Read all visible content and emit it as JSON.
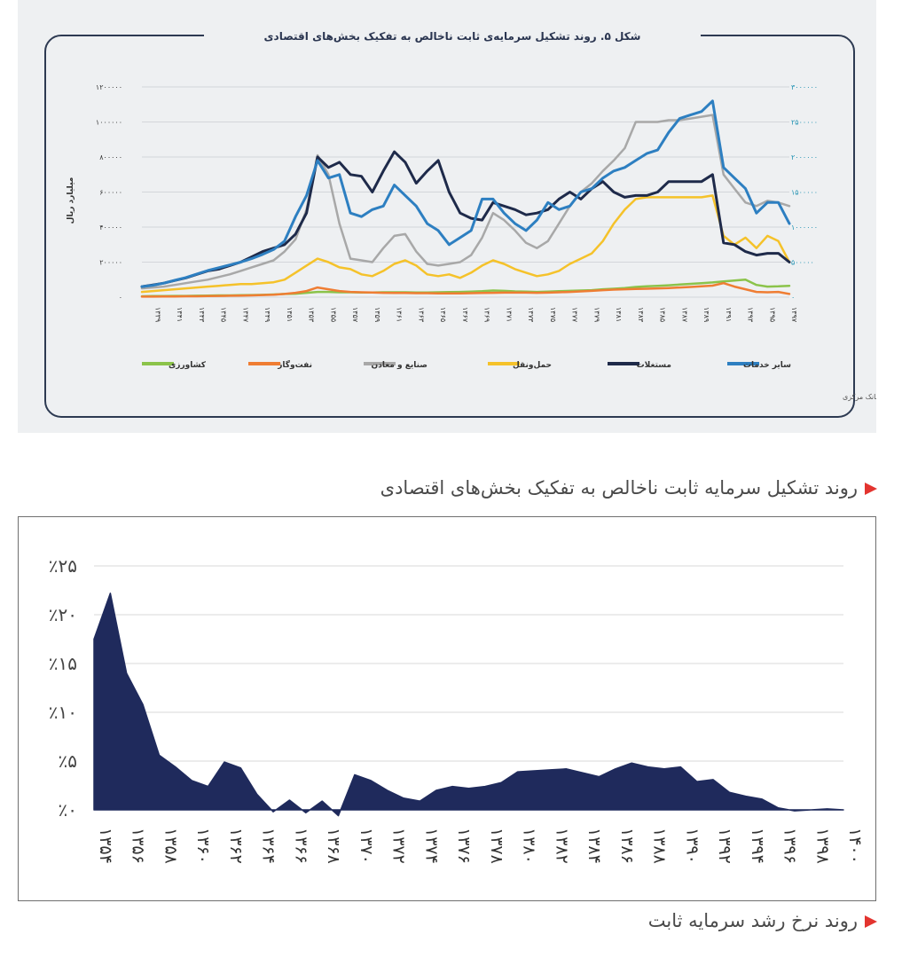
{
  "figure1": {
    "title": "شکل ۵. روند تشکیل سرمایه‌ی ثابت ناخالص به تفکیک بخش‌های اقتصادی",
    "source": "منبع: بانک مرکزی",
    "left_axis_label": "میلیارد ریال",
    "left_ticks": [
      "۰",
      "۲۰۰۰۰۰",
      "۴۰۰۰۰۰",
      "۶۰۰۰۰۰",
      "۸۰۰۰۰۰",
      "۱۰۰۰۰۰۰",
      "۱۲۰۰۰۰۰"
    ],
    "right_ticks": [
      "۰",
      "۵۰۰۰۰۰",
      "۱۰۰۰۰۰۰",
      "۱۵۰۰۰۰۰",
      "۲۰۰۰۰۰۰",
      "۲۵۰۰۰۰۰",
      "۳۰۰۰۰۰۰"
    ],
    "colors": {
      "frame": "#2d3a52",
      "title": "#2a3550"
    }
  },
  "chart_data": [
    {
      "type": "line",
      "title": "شکل ۵. روند تشکیل سرمایه‌ی ثابت ناخالص به تفکیک بخش‌های اقتصادی",
      "ylabel": "میلیارد ریال",
      "ylim": [
        0,
        1200000
      ],
      "y2lim": [
        0,
        3000000
      ],
      "grid": true,
      "legend": "bottom",
      "x": [
        "۱۳۳۸",
        "۱۳۳۹",
        "۱۳۴۰",
        "۱۳۴۱",
        "۱۳۴۲",
        "۱۳۴۳",
        "۱۳۴۴",
        "۱۳۴۵",
        "۱۳۴۶",
        "۱۳۴۷",
        "۱۳۴۸",
        "۱۳۴۹",
        "۱۳۵۰",
        "۱۳۵۱",
        "۱۳۵۲",
        "۱۳۵۳",
        "۱۳۵۴",
        "۱۳۵۵",
        "۱۳۵۶",
        "۱۳۵۷",
        "۱۳۵۸",
        "۱۳۵۹",
        "۱۳۶۰",
        "۱۳۶۱",
        "۱۳۶۲",
        "۱۳۶۳",
        "۱۳۶۴",
        "۱۳۶۵",
        "۱۳۶۶",
        "۱۳۶۷",
        "۱۳۶۸",
        "۱۳۶۹",
        "۱۳۷۰",
        "۱۳۷۱",
        "۱۳۷۲",
        "۱۳۷۳",
        "۱۳۷۴",
        "۱۳۷۵",
        "۱۳۷۶",
        "۱۳۷۷",
        "۱۳۷۸",
        "۱۳۷۹",
        "۱۳۸۰",
        "۱۳۸۱",
        "۱۳۸۲",
        "۱۳۸۳",
        "۱۳۸۴",
        "۱۳۸۵",
        "۱۳۸۶",
        "۱۳۸۷",
        "۱۳۸۸",
        "۱۳۸۹",
        "۱۳۹۰",
        "۱۳۹۱",
        "۱۳۹۲",
        "۱۳۹۳",
        "۱۳۹۴",
        "۱۳۹۵",
        "۱۳۹۶",
        "۱۳۹۷"
      ],
      "x_tick_labels": [
        "۱۳۳۹",
        "۱۳۴۱",
        "۱۳۴۳",
        "۱۳۴۵",
        "۱۳۴۷",
        "۱۳۴۹",
        "۱۳۵۱",
        "۱۳۵۳",
        "۱۳۵۵",
        "۱۳۵۷",
        "۱۳۵۹",
        "۱۳۶۱",
        "۱۳۶۳",
        "۱۳۶۵",
        "۱۳۶۷",
        "۱۳۶۹",
        "۱۳۷۱",
        "۱۳۷۳",
        "۱۳۷۵",
        "۱۳۷۷",
        "۱۳۷۹",
        "۱۳۸۱",
        "۱۳۸۳",
        "۱۳۸۵",
        "۱۳۸۷",
        "۱۳۸۹",
        "۱۳۹۱",
        "۱۳۹۳",
        "۱۳۹۵",
        "۱۳۹۷"
      ],
      "series": [
        {
          "name": "کشاورزی",
          "color": "#8bc34a",
          "axis": "left",
          "values": [
            5000,
            6000,
            6000,
            7000,
            7000,
            8000,
            9000,
            10000,
            10000,
            11000,
            12000,
            13000,
            15000,
            18000,
            20000,
            25000,
            30000,
            30000,
            28000,
            28000,
            27000,
            27000,
            28000,
            28000,
            28000,
            27000,
            27000,
            28000,
            29000,
            30000,
            32000,
            34000,
            38000,
            36000,
            33000,
            32000,
            30000,
            32000,
            34000,
            36000,
            38000,
            40000,
            45000,
            48000,
            52000,
            58000,
            62000,
            65000,
            68000,
            72000,
            76000,
            80000,
            84000,
            90000,
            95000,
            100000,
            70000,
            60000,
            62000,
            65000
          ]
        },
        {
          "name": "نفت‌وگاز",
          "color": "#ef7d33",
          "axis": "left",
          "values": [
            3000,
            3000,
            4000,
            4000,
            5000,
            5000,
            6000,
            7000,
            8000,
            9000,
            10000,
            12000,
            14000,
            18000,
            25000,
            35000,
            55000,
            45000,
            35000,
            30000,
            28000,
            27000,
            25000,
            24000,
            24000,
            23000,
            23000,
            22000,
            22000,
            22000,
            23000,
            24000,
            25000,
            26000,
            26000,
            26000,
            25000,
            26000,
            28000,
            30000,
            33000,
            36000,
            40000,
            43000,
            45000,
            47000,
            48000,
            50000,
            52000,
            55000,
            58000,
            62000,
            66000,
            80000,
            60000,
            45000,
            30000,
            28000,
            30000,
            18000
          ]
        },
        {
          "name": "صنایع و معادن",
          "color": "#a8a8a8",
          "axis": "left",
          "values": [
            50000,
            55000,
            60000,
            70000,
            80000,
            90000,
            100000,
            115000,
            130000,
            150000,
            170000,
            190000,
            210000,
            260000,
            330000,
            500000,
            810000,
            700000,
            420000,
            220000,
            210000,
            200000,
            280000,
            350000,
            360000,
            260000,
            190000,
            180000,
            190000,
            200000,
            240000,
            340000,
            480000,
            440000,
            380000,
            310000,
            280000,
            320000,
            420000,
            520000,
            600000,
            650000,
            720000,
            780000,
            850000,
            1000000,
            1000000,
            1000000,
            1010000,
            1010000,
            1020000,
            1030000,
            1040000,
            700000,
            620000,
            540000,
            520000,
            550000,
            540000,
            520000
          ]
        },
        {
          "name": "حمل‌ونقل",
          "color": "#f5c22a",
          "axis": "left",
          "values": [
            30000,
            35000,
            40000,
            45000,
            50000,
            55000,
            60000,
            65000,
            70000,
            75000,
            75000,
            80000,
            85000,
            100000,
            140000,
            180000,
            220000,
            200000,
            170000,
            160000,
            130000,
            120000,
            150000,
            190000,
            210000,
            180000,
            130000,
            120000,
            130000,
            110000,
            140000,
            180000,
            210000,
            190000,
            160000,
            140000,
            120000,
            130000,
            150000,
            190000,
            220000,
            250000,
            320000,
            420000,
            500000,
            560000,
            570000,
            570000,
            570000,
            570000,
            570000,
            570000,
            580000,
            350000,
            300000,
            340000,
            280000,
            350000,
            320000,
            200000
          ]
        },
        {
          "name": "مستغلات",
          "color": "#1e2a4a",
          "axis": "left",
          "values": [
            60000,
            70000,
            80000,
            95000,
            110000,
            130000,
            150000,
            160000,
            180000,
            200000,
            230000,
            260000,
            280000,
            300000,
            360000,
            480000,
            800000,
            740000,
            770000,
            700000,
            690000,
            600000,
            720000,
            830000,
            770000,
            650000,
            720000,
            780000,
            600000,
            480000,
            450000,
            440000,
            540000,
            520000,
            500000,
            470000,
            480000,
            500000,
            560000,
            600000,
            560000,
            620000,
            660000,
            600000,
            570000,
            580000,
            580000,
            600000,
            660000,
            660000,
            660000,
            660000,
            700000,
            310000,
            300000,
            260000,
            240000,
            250000,
            250000,
            200000
          ]
        },
        {
          "name": "سایر خدمات",
          "color": "#2d7fc1",
          "axis": "right",
          "values": [
            150000,
            170000,
            200000,
            240000,
            280000,
            330000,
            380000,
            420000,
            460000,
            500000,
            550000,
            610000,
            680000,
            800000,
            1150000,
            1450000,
            1950000,
            1700000,
            1750000,
            1200000,
            1150000,
            1250000,
            1300000,
            1600000,
            1450000,
            1300000,
            1050000,
            950000,
            750000,
            850000,
            950000,
            1400000,
            1400000,
            1200000,
            1050000,
            950000,
            1100000,
            1350000,
            1250000,
            1300000,
            1500000,
            1550000,
            1700000,
            1800000,
            1850000,
            1950000,
            2050000,
            2100000,
            2350000,
            2550000,
            2600000,
            2650000,
            2800000,
            1850000,
            1700000,
            1550000,
            1200000,
            1350000,
            1350000,
            1050000
          ]
        }
      ]
    },
    {
      "type": "area",
      "title": "",
      "ylim": [
        0,
        25
      ],
      "grid": true,
      "y_tick_labels": [
        "٪۰",
        "٪۵",
        "٪۱۰",
        "٪۱۵",
        "٪۲۰",
        "٪۲۵"
      ],
      "x": [
        1354,
        1355,
        1356,
        1357,
        1358,
        1359,
        1360,
        1361,
        1362,
        1363,
        1364,
        1365,
        1366,
        1367,
        1368,
        1369,
        1370,
        1371,
        1372,
        1373,
        1374,
        1375,
        1376,
        1377,
        1378,
        1379,
        1380,
        1381,
        1382,
        1383,
        1384,
        1385,
        1386,
        1387,
        1388,
        1389,
        1390,
        1391,
        1392,
        1393,
        1394,
        1395,
        1396,
        1397,
        1398,
        1399,
        1400
      ],
      "x_tick_labels": [
        "۱۳۵۴",
        "۱۳۵۶",
        "۱۳۵۸",
        "۱۳۶۰",
        "۱۳۶۲",
        "۱۳۶۴",
        "۱۳۶۶",
        "۱۳۶۸",
        "۱۳۷۰",
        "۱۳۷۲",
        "۱۳۷۴",
        "۱۳۷۶",
        "۱۳۷۸",
        "۱۳۸۰",
        "۱۳۸۲",
        "۱۳۸۴",
        "۱۳۸۶",
        "۱۳۸۸",
        "۱۳۹۰",
        "۱۳۹۲",
        "۱۳۹۴",
        "۱۳۹۶",
        "۱۳۹۸",
        "۱۴۰۰"
      ],
      "values": [
        17.5,
        22.2,
        14.0,
        10.8,
        5.6,
        4.4,
        3.0,
        2.4,
        4.9,
        4.3,
        1.6,
        -0.2,
        1.0,
        -0.3,
        0.9,
        -0.6,
        3.6,
        3.0,
        2.0,
        1.2,
        0.9,
        2.0,
        2.4,
        2.2,
        2.4,
        2.8,
        3.9,
        4.0,
        4.1,
        4.2,
        3.8,
        3.4,
        4.2,
        4.8,
        4.4,
        4.2,
        4.4,
        2.9,
        3.1,
        1.8,
        1.4,
        1.1,
        0.2,
        -0.1,
        0.0,
        0.1,
        0.0
      ],
      "color": "#1f2a5c"
    }
  ],
  "legend_order": [
    "کشاورزی",
    "نفت‌وگاز",
    "صنایع و معادن",
    "حمل‌ونقل",
    "مستغلات",
    "سایر خدمات"
  ],
  "captions": {
    "figure1": "روند تشکیل سرمایه ثابت ناخالص به تفکیک بخش‌های اقتصادی",
    "figure2": "روند نرخ رشد سرمایه ثابت"
  }
}
